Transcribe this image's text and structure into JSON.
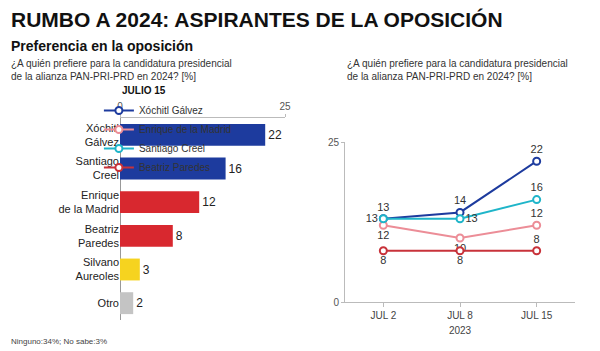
{
  "header": {
    "title": "RUMBO A 2024: ASPIRANTES DE LA OPOSICIÓN",
    "subtitle": "Preferencia en la oposición"
  },
  "footnote": "Ninguno:34%; No sabe:3%",
  "chart_data": [
    {
      "type": "bar",
      "title": "¿A quién prefiere para la candidatura presidencial de la alianza PAN-PRI-PRD en 2024? [%]",
      "subtitle": "JULIO 15",
      "orientation": "horizontal",
      "categories": [
        "Xóchitl Gálvez",
        "Santiago Creel",
        "Enrique de la Madrid",
        "Beatriz Paredes",
        "Silvano Aureoles",
        "Otro"
      ],
      "values": [
        22,
        16,
        12,
        8,
        3,
        2
      ],
      "colors": [
        "#1d3b9e",
        "#1d3b9e",
        "#d8282f",
        "#d8282f",
        "#f6d31f",
        "#c4c4c4"
      ],
      "xlim": [
        0,
        25
      ],
      "xticks": [
        0,
        25
      ],
      "grid": false,
      "data_labels": true
    },
    {
      "type": "line",
      "title": "¿A quién prefiere para la candidatura presidencial de la alianza PAN-PRI-PRD en 2024? [%]",
      "xlabel": "2023",
      "categories": [
        "JUL 2",
        "JUL 8",
        "JUL 15"
      ],
      "series": [
        {
          "name": "Xóchitl Gálvez",
          "color": "#1d3b9e",
          "values": [
            13,
            14,
            22
          ]
        },
        {
          "name": "Enrique de la Madrid",
          "color": "#ec8d97",
          "values": [
            12,
            10,
            12
          ]
        },
        {
          "name": "Santiago Creel",
          "color": "#1fb5c9",
          "values": [
            13,
            13,
            16
          ]
        },
        {
          "name": "Beatriz Paredes",
          "color": "#c8323a",
          "values": [
            8,
            8,
            8
          ]
        }
      ],
      "ylim": [
        0,
        25
      ],
      "yticks": [
        0,
        25
      ],
      "grid": false,
      "data_labels": true,
      "legend": "top",
      "marker": "circle"
    }
  ]
}
